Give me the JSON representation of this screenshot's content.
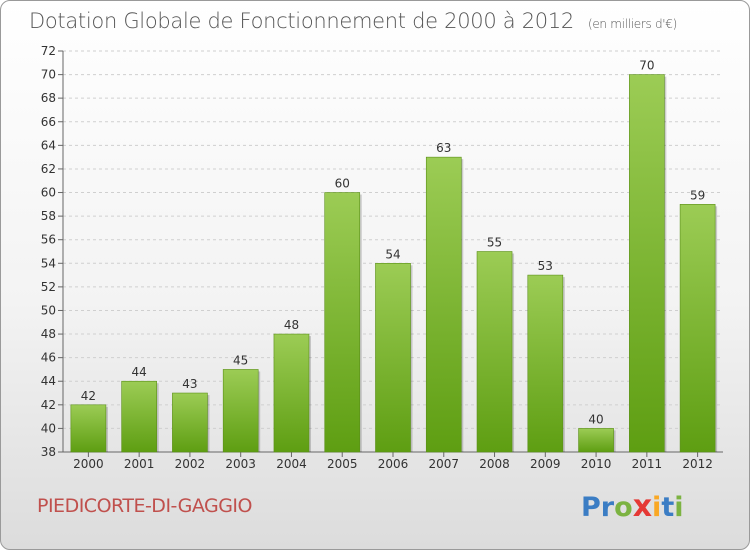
{
  "header": {
    "title": "Dotation Globale de Fonctionnement de 2000 à 2012",
    "subtitle": "(en milliers d'€)"
  },
  "footer": {
    "commune": "PIEDICORTE-DI-GAGGIO",
    "brand_letters": [
      "P",
      "r",
      "o",
      "x",
      "i",
      "t",
      "i"
    ]
  },
  "colors": {
    "bar_top": "#9ccc55",
    "bar_bottom": "#5e9e12",
    "grid": "#cfcfcf",
    "commune": "#c0504d"
  },
  "chart_data": {
    "type": "bar",
    "title": "Dotation Globale de Fonctionnement de 2000 à 2012",
    "subtitle": "(en milliers d'€)",
    "categories": [
      "2000",
      "2001",
      "2002",
      "2003",
      "2004",
      "2005",
      "2006",
      "2007",
      "2008",
      "2009",
      "2010",
      "2011",
      "2012"
    ],
    "values": [
      42,
      44,
      43,
      45,
      48,
      60,
      54,
      63,
      55,
      53,
      40,
      70,
      59
    ],
    "ylim": [
      38,
      72
    ],
    "yticks": [
      38,
      40,
      42,
      44,
      46,
      48,
      50,
      52,
      54,
      56,
      58,
      60,
      62,
      64,
      66,
      68,
      70,
      72
    ],
    "grid": "horizontal-dashed",
    "legend": "none"
  }
}
